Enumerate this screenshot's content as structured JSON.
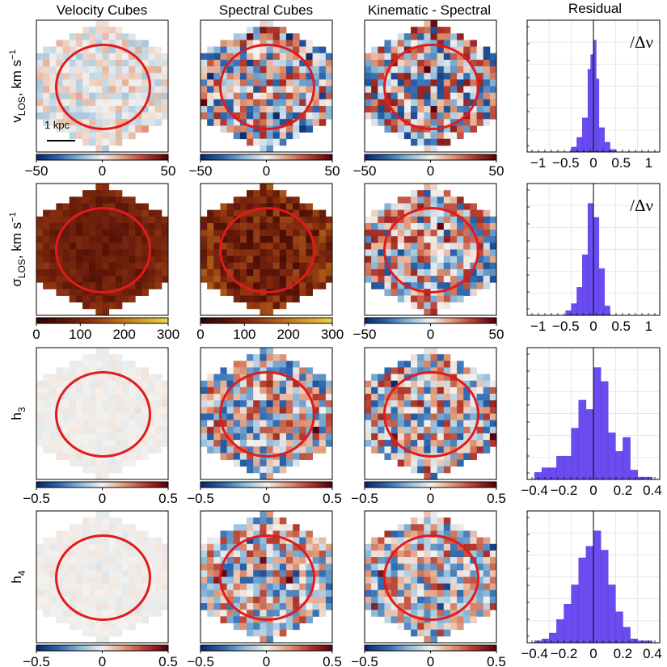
{
  "column_titles": [
    "Velocity Cubes",
    "Spectral Cubes",
    "Kinematic - Spectral",
    "Residual"
  ],
  "scale_bar_label": "1 kpc",
  "hist_annotation": "/Δν",
  "colormaps": {
    "diverging": [
      "#0a2a6b",
      "#2e68b0",
      "#8db9d8",
      "#f4f1ee",
      "#e09a7a",
      "#b43a2e",
      "#5a0010"
    ],
    "sequential": [
      "#2b0500",
      "#5a1408",
      "#8a3010",
      "#b4661a",
      "#d69a28",
      "#e8d440"
    ]
  },
  "rows": [
    {
      "label_main": "v",
      "label_sub": "LOS",
      "label_suffix": ", km s",
      "label_sup": "−1",
      "maps": [
        {
          "cmap": "diverging",
          "clim": [
            -50,
            50
          ],
          "ticks": [
            "−50",
            "0",
            "50"
          ],
          "amp": 0.25
        },
        {
          "cmap": "diverging",
          "clim": [
            -50,
            50
          ],
          "ticks": [
            "−50",
            "0",
            "50"
          ],
          "amp": 0.8
        },
        {
          "cmap": "diverging",
          "clim": [
            -50,
            50
          ],
          "ticks": [
            "−50",
            "0",
            "50"
          ],
          "amp": 0.85
        }
      ],
      "hist": {
        "xlim": [
          -1.2,
          1.2
        ],
        "ticks": [
          "−1",
          "−0.5",
          "0",
          "0.5",
          "1"
        ],
        "tick_values": [
          -1,
          -0.5,
          0,
          0.5,
          1
        ],
        "bin_edges": [
          -0.4,
          -0.3,
          -0.2,
          -0.1,
          -0.05,
          0,
          0.05,
          0.1,
          0.2,
          0.3,
          0.4
        ],
        "counts": [
          2,
          6,
          14,
          34,
          40,
          46,
          30,
          10,
          4,
          1
        ],
        "annotate": true
      }
    },
    {
      "label_main": "σ",
      "label_sub": "LOS",
      "label_suffix": ", km s",
      "label_sup": "−1",
      "maps": [
        {
          "cmap": "sequential",
          "clim": [
            0,
            300
          ],
          "ticks": [
            "0",
            "100",
            "200",
            "300"
          ],
          "amp": 0.08,
          "base": 0.3
        },
        {
          "cmap": "sequential",
          "clim": [
            0,
            300
          ],
          "ticks": [
            "0",
            "100",
            "200",
            "300"
          ],
          "amp": 0.18,
          "base": 0.33
        },
        {
          "cmap": "diverging",
          "clim": [
            -50,
            50
          ],
          "ticks": [
            "−50",
            "0",
            "50"
          ],
          "amp": 0.8
        }
      ],
      "hist": {
        "xlim": [
          -1.2,
          1.2
        ],
        "ticks": [
          "−1",
          "−0.5",
          "0",
          "0.5",
          "1"
        ],
        "tick_values": [
          -1,
          -0.5,
          0,
          0.5,
          1
        ],
        "bin_edges": [
          -0.5,
          -0.4,
          -0.3,
          -0.2,
          -0.1,
          0,
          0.1,
          0.2,
          0.3
        ],
        "counts": [
          2,
          5,
          12,
          26,
          48,
          42,
          20,
          4
        ],
        "annotate": true
      }
    },
    {
      "label_main": "h",
      "label_sub": "3",
      "label_suffix": "",
      "label_sup": "",
      "maps": [
        {
          "cmap": "diverging",
          "clim": [
            -0.5,
            0.5
          ],
          "ticks": [
            "−0.5",
            "0",
            "0.5"
          ],
          "amp": 0.05
        },
        {
          "cmap": "diverging",
          "clim": [
            -0.5,
            0.5
          ],
          "ticks": [
            "−0.5",
            "0",
            "0.5"
          ],
          "amp": 0.75
        },
        {
          "cmap": "diverging",
          "clim": [
            -0.5,
            0.5
          ],
          "ticks": [
            "−0.5",
            "0",
            "0.5"
          ],
          "amp": 0.75
        }
      ],
      "hist": {
        "xlim": [
          -0.45,
          0.45
        ],
        "ticks": [
          "−0.4",
          "−0.2",
          "0",
          "0.2",
          "0.4"
        ],
        "tick_values": [
          -0.4,
          -0.2,
          0,
          0.2,
          0.4
        ],
        "bin_edges": [
          -0.4,
          -0.35,
          -0.3,
          -0.25,
          -0.2,
          -0.15,
          -0.1,
          -0.05,
          0,
          0.05,
          0.1,
          0.15,
          0.2,
          0.25,
          0.3,
          0.35,
          0.4
        ],
        "counts": [
          3,
          5,
          5,
          10,
          10,
          22,
          34,
          30,
          48,
          42,
          20,
          12,
          18,
          4,
          1,
          1
        ],
        "annotate": false
      }
    },
    {
      "label_main": "h",
      "label_sub": "4",
      "label_suffix": "",
      "label_sup": "",
      "maps": [
        {
          "cmap": "diverging",
          "clim": [
            -0.5,
            0.5
          ],
          "ticks": [
            "−0.5",
            "0",
            "0.5"
          ],
          "amp": 0.05
        },
        {
          "cmap": "diverging",
          "clim": [
            -0.5,
            0.5
          ],
          "ticks": [
            "−0.5",
            "0",
            "0.5"
          ],
          "amp": 0.7
        },
        {
          "cmap": "diverging",
          "clim": [
            -0.5,
            0.5
          ],
          "ticks": [
            "−0.5",
            "0",
            "0.5"
          ],
          "amp": 0.7
        }
      ],
      "hist": {
        "xlim": [
          -0.45,
          0.45
        ],
        "ticks": [
          "−0.4",
          "−0.2",
          "0",
          "0.2",
          "0.4"
        ],
        "tick_values": [
          -0.4,
          -0.2,
          0,
          0.2,
          0.4
        ],
        "bin_edges": [
          -0.4,
          -0.35,
          -0.3,
          -0.25,
          -0.2,
          -0.15,
          -0.1,
          -0.05,
          0,
          0.05,
          0.1,
          0.15,
          0.2,
          0.25,
          0.3,
          0.35,
          0.4
        ],
        "counts": [
          1,
          2,
          5,
          12,
          20,
          30,
          44,
          50,
          58,
          48,
          30,
          16,
          8,
          2,
          1,
          1
        ],
        "annotate": false
      }
    }
  ],
  "chart_data": {
    "type": "heatmap",
    "title": "",
    "panels": "4x4 grid: rows v_LOS, sigma_LOS, h3, h4; columns Velocity Cubes, Spectral Cubes, Kinematic - Spectral (pixel maps with red ellipse), Residual (histograms)",
    "colorbar_ranges": {
      "v_LOS": [
        -50,
        50
      ],
      "sigma_LOS_maps": [
        0,
        300
      ],
      "sigma_LOS_difference": [
        -50,
        50
      ],
      "h3": [
        -0.5,
        0.5
      ],
      "h4": [
        -0.5,
        0.5
      ]
    },
    "histograms": [
      {
        "row": "v_LOS",
        "xlim": [
          -1.2,
          1.2
        ],
        "type": "bar"
      },
      {
        "row": "sigma_LOS",
        "xlim": [
          -1.2,
          1.2
        ],
        "type": "bar"
      },
      {
        "row": "h3",
        "xlim": [
          -0.45,
          0.45
        ],
        "type": "bar"
      },
      {
        "row": "h4",
        "xlim": [
          -0.45,
          0.45
        ],
        "type": "bar"
      }
    ]
  }
}
